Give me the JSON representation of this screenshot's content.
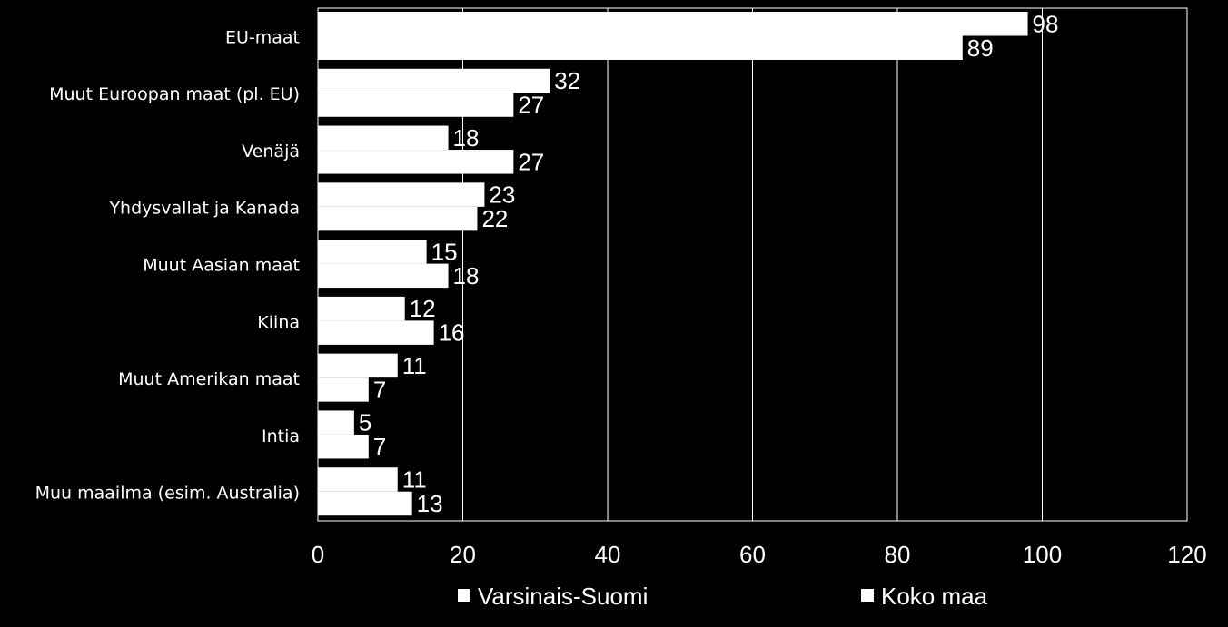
{
  "chart_data": {
    "type": "bar",
    "orientation": "horizontal",
    "categories": [
      "EU-maat",
      "Muut Euroopan maat (pl. EU)",
      "Venäjä",
      "Yhdysvallat ja Kanada",
      "Muut Aasian maat",
      "Kiina",
      "Muut Amerikan maat",
      "Intia",
      "Muu maailma (esim. Australia)"
    ],
    "series": [
      {
        "name": "Varsinais-Suomi",
        "values": [
          98,
          32,
          18,
          23,
          15,
          12,
          11,
          5,
          11
        ],
        "color": "#ffffff"
      },
      {
        "name": "Koko maa",
        "values": [
          89,
          27,
          27,
          22,
          18,
          16,
          7,
          7,
          13
        ],
        "color": "#ffffff"
      }
    ],
    "xlim": [
      0,
      120
    ],
    "xticks": [
      "0",
      "20",
      "40",
      "60",
      "80",
      "100",
      "120"
    ],
    "grid": true,
    "legend_position": "bottom",
    "background": "#000000"
  }
}
